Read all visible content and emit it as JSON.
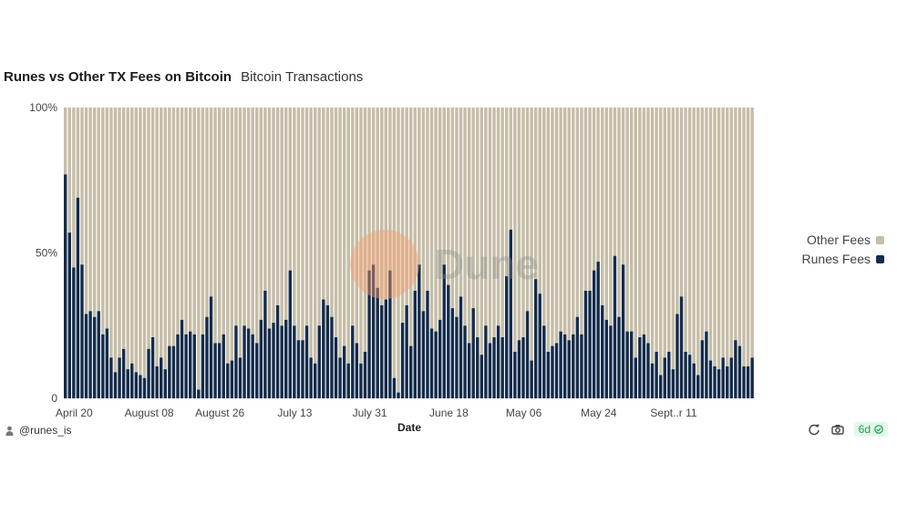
{
  "header": {
    "title": "Runes vs Other TX Fees on Bitcoin",
    "subtitle": "Bitcoin Transactions"
  },
  "watermark": "Dune",
  "legend": [
    {
      "label": "Other Fees",
      "color": "#c5bda7"
    },
    {
      "label": "Runes Fees",
      "color": "#142b4a"
    }
  ],
  "footer": {
    "author": "@runes_is",
    "age": "6d"
  },
  "icons": {
    "author": "person-icon",
    "refresh": "refresh-icon",
    "screenshot": "camera-icon",
    "fresh": "check-circle-icon"
  },
  "chart_data": {
    "type": "bar",
    "stacked": true,
    "normalized": true,
    "xlabel": "Date",
    "ylabel": "",
    "ylim": [
      0,
      100
    ],
    "yticks": [
      {
        "value": 0,
        "label": "0"
      },
      {
        "value": 50,
        "label": "50%"
      },
      {
        "value": 100,
        "label": "100%"
      }
    ],
    "xtick_labels": [
      {
        "index": 2,
        "label": "April 20"
      },
      {
        "index": 20,
        "label": "August 08"
      },
      {
        "index": 37,
        "label": "August 26"
      },
      {
        "index": 55,
        "label": "July 13"
      },
      {
        "index": 73,
        "label": "July 31"
      },
      {
        "index": 92,
        "label": "June 18"
      },
      {
        "index": 110,
        "label": "May 06"
      },
      {
        "index": 128,
        "label": "May 24"
      },
      {
        "index": 146,
        "label": "Sept..r 11"
      }
    ],
    "series": [
      {
        "name": "Runes Fees",
        "color": "#142b4a",
        "values": [
          77,
          57,
          45,
          69,
          46,
          29,
          30,
          28,
          30,
          22,
          24,
          14,
          9,
          14,
          17,
          10,
          12,
          9,
          8,
          7,
          17,
          21,
          11,
          14,
          10,
          18,
          18,
          22,
          27,
          22,
          23,
          22,
          3,
          22,
          28,
          35,
          19,
          19,
          22,
          12,
          13,
          25,
          14,
          25,
          24,
          22,
          19,
          27,
          37,
          24,
          26,
          32,
          25,
          27,
          44,
          25,
          20,
          20,
          25,
          14,
          12,
          25,
          34,
          32,
          28,
          21,
          14,
          18,
          12,
          25,
          19,
          12,
          16,
          44,
          46,
          38,
          32,
          34,
          44,
          7,
          2,
          26,
          32,
          18,
          37,
          46,
          30,
          37,
          24,
          23,
          27,
          46,
          39,
          31,
          28,
          35,
          25,
          19,
          31,
          21,
          15,
          25,
          19,
          21,
          25,
          21,
          42,
          58,
          16,
          20,
          21,
          30,
          13,
          41,
          36,
          25,
          16,
          18,
          19,
          23,
          22,
          20,
          22,
          28,
          22,
          37,
          37,
          44,
          47,
          32,
          27,
          25,
          49,
          28,
          46,
          23,
          23,
          14,
          21,
          22,
          19,
          12,
          16,
          8,
          14,
          16,
          10,
          29,
          35,
          16,
          15,
          12,
          8,
          20,
          23,
          13,
          11,
          10,
          14,
          11,
          14,
          20,
          18,
          11,
          11,
          14
        ]
      },
      {
        "name": "Other Fees",
        "color": "#c5bda7",
        "fill_to": 100
      }
    ]
  }
}
